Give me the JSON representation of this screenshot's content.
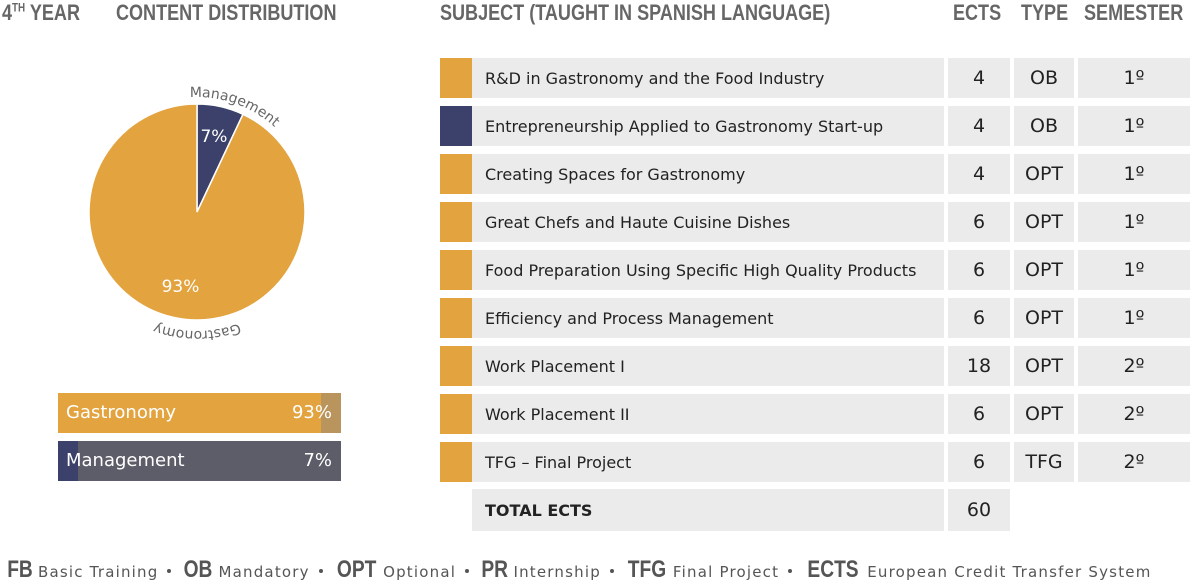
{
  "header": {
    "year_number": "4",
    "year_suffix": "TH",
    "year_word": "YEAR",
    "title": "CONTENT DISTRIBUTION"
  },
  "chart_data": {
    "type": "pie",
    "categories": [
      "Gastronomy",
      "Management"
    ],
    "values": [
      93,
      7
    ],
    "value_labels": [
      "93%",
      "7%"
    ],
    "colors": [
      "#e3a33e",
      "#3c416b"
    ],
    "bar_backgrounds": [
      "#b9955d",
      "#5d5d69"
    ]
  },
  "table": {
    "columns": [
      "SUBJECT (TAUGHT IN SPANISH LANGUAGE)",
      "ECTS",
      "TYPE",
      "SEMESTER"
    ],
    "rows": [
      {
        "subject": "R&D in Gastronomy and the Food Industry",
        "ects": "4",
        "type": "OB",
        "semester": "1º",
        "color": "#e3a33e"
      },
      {
        "subject": "Entrepreneurship Applied to Gastronomy Start-up",
        "ects": "4",
        "type": "OB",
        "semester": "1º",
        "color": "#3c416b"
      },
      {
        "subject": "Creating Spaces for Gastronomy",
        "ects": "4",
        "type": "OPT",
        "semester": "1º",
        "color": "#e3a33e"
      },
      {
        "subject": "Great Chefs and Haute Cuisine Dishes",
        "ects": "6",
        "type": "OPT",
        "semester": "1º",
        "color": "#e3a33e"
      },
      {
        "subject": "Food Preparation Using Specific High Quality Products",
        "ects": "6",
        "type": "OPT",
        "semester": "1º",
        "color": "#e3a33e"
      },
      {
        "subject": "Efficiency and Process Management",
        "ects": "6",
        "type": "OPT",
        "semester": "1º",
        "color": "#e3a33e"
      },
      {
        "subject": "Work Placement I",
        "ects": "18",
        "type": "OPT",
        "semester": "2º",
        "color": "#e3a33e"
      },
      {
        "subject": "Work Placement II",
        "ects": "6",
        "type": "OPT",
        "semester": "2º",
        "color": "#e3a33e"
      },
      {
        "subject": "TFG – Final Project",
        "ects": "6",
        "type": "TFG",
        "semester": "2º",
        "color": "#e3a33e"
      }
    ],
    "total_label": "TOTAL ECTS",
    "total_value": "60"
  },
  "legend": [
    {
      "abbr": "FB",
      "text": "Basic Training"
    },
    {
      "abbr": "OB",
      "text": "Mandatory"
    },
    {
      "abbr": "OPT",
      "text": "Optional"
    },
    {
      "abbr": "PR",
      "text": "Internship"
    },
    {
      "abbr": "TFG",
      "text": "Final Project"
    },
    {
      "abbr": "ECTS",
      "text": "European Credit Transfer System"
    }
  ]
}
